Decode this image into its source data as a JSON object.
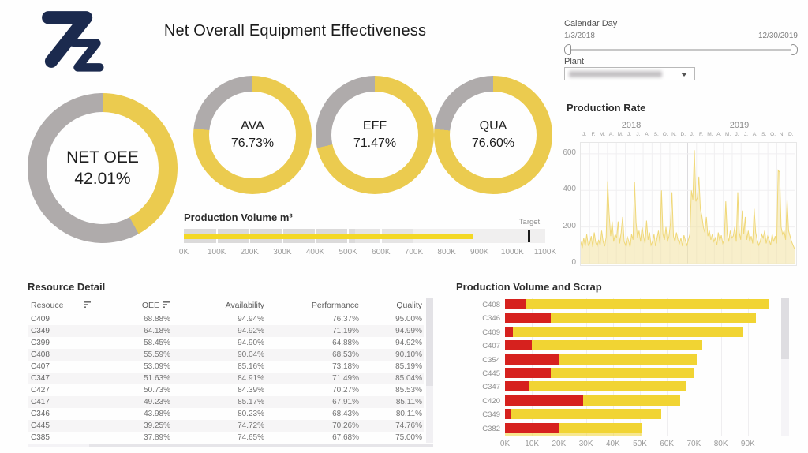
{
  "app": {
    "title": "Net Overall Equipment Effectiveness"
  },
  "filters": {
    "calendar": {
      "label": "Calendar Day",
      "start": "1/3/2018",
      "end": "12/30/2019"
    },
    "plant": {
      "label": "Plant"
    }
  },
  "kpis": [
    {
      "label": "NET OEE",
      "value": "42.01%",
      "pct": 42.01
    },
    {
      "label": "AVA",
      "value": "76.73%",
      "pct": 76.73
    },
    {
      "label": "EFF",
      "value": "71.47%",
      "pct": 71.47
    },
    {
      "label": "QUA",
      "value": "76.60%",
      "pct": 76.6
    }
  ],
  "colors": {
    "brand_navy": "#1b2a4e",
    "donut_yellow": "#ebcb4f",
    "donut_gray": "#afabab",
    "bullet_yellow": "#f3d825",
    "bullet_bands": [
      "#dbdada",
      "#e5e4e4",
      "#f0efef"
    ],
    "bar_yellow": "#f1d433",
    "bar_red": "#d6211e",
    "rate_stroke": "#f0d878",
    "rate_fill": "rgba(243,226,160,0.55)"
  },
  "resource_detail": {
    "title": "Resource Detail",
    "columns": [
      "Resouce",
      "OEE",
      "Availability",
      "Performance",
      "Quality"
    ],
    "sorted_columns": [
      0,
      1
    ],
    "rows": [
      [
        "C409",
        "68.88%",
        "94.94%",
        "76.37%",
        "95.00%"
      ],
      [
        "C349",
        "64.18%",
        "94.92%",
        "71.19%",
        "94.99%"
      ],
      [
        "C399",
        "58.45%",
        "94.90%",
        "64.88%",
        "94.92%"
      ],
      [
        "C408",
        "55.59%",
        "90.04%",
        "68.53%",
        "90.10%"
      ],
      [
        "C407",
        "53.09%",
        "85.16%",
        "73.18%",
        "85.19%"
      ],
      [
        "C347",
        "51.63%",
        "84.91%",
        "71.49%",
        "85.04%"
      ],
      [
        "C427",
        "50.73%",
        "84.39%",
        "70.27%",
        "85.53%"
      ],
      [
        "C417",
        "49.23%",
        "85.17%",
        "67.91%",
        "85.11%"
      ],
      [
        "C346",
        "43.98%",
        "80.23%",
        "68.43%",
        "80.11%"
      ],
      [
        "C445",
        "39.25%",
        "74.72%",
        "70.26%",
        "74.76%"
      ],
      [
        "C385",
        "37.89%",
        "74.65%",
        "67.68%",
        "75.00%"
      ]
    ]
  },
  "chart_data": [
    {
      "id": "production_volume_bullet",
      "type": "bar",
      "subtype": "bullet",
      "title": "Production Volume m³",
      "target_label": "Target",
      "value_k": 880,
      "target_k": 1050,
      "axis_max_k": 1100,
      "band_edges_k": [
        520,
        700,
        1100
      ],
      "ticks": [
        "0K",
        "100K",
        "200K",
        "300K",
        "400K",
        "500K",
        "600K",
        "700K",
        "800K",
        "900K",
        "1000K",
        "1100K"
      ]
    },
    {
      "id": "production_rate",
      "type": "area",
      "title": "Production Rate",
      "years": [
        "2018",
        "2019"
      ],
      "month_labels": [
        "J.",
        "F.",
        "M.",
        "A.",
        "M.",
        "J.",
        "J.",
        "A.",
        "S.",
        "O.",
        "N.",
        "D.",
        "J.",
        "F.",
        "M.",
        "A.",
        "M.",
        "J.",
        "J.",
        "A.",
        "S.",
        "O.",
        "N.",
        "D."
      ],
      "yticks": [
        0,
        200,
        400,
        600
      ],
      "ylim": [
        0,
        660
      ],
      "grid": true,
      "values": [
        120,
        85,
        140,
        95,
        160,
        100,
        110,
        150,
        90,
        170,
        115,
        95,
        130,
        100,
        180,
        120,
        95,
        145,
        450,
        270,
        150,
        230,
        120,
        160,
        140,
        230,
        110,
        170,
        255,
        120,
        100,
        150,
        125,
        90,
        160,
        130,
        445,
        225,
        140,
        180,
        120,
        200,
        150,
        110,
        235,
        130,
        170,
        100,
        120,
        160,
        95,
        140,
        180,
        110,
        400,
        160,
        130,
        200,
        120,
        150,
        220,
        390,
        150,
        120,
        170,
        130,
        110,
        140,
        95,
        155,
        125,
        100,
        130,
        160,
        400,
        350,
        620,
        340,
        360,
        475,
        300,
        260,
        200,
        170,
        255,
        150,
        180,
        130,
        160,
        120,
        140,
        100,
        170,
        125,
        155,
        110,
        130,
        340,
        160,
        120,
        180,
        140,
        150,
        200,
        120,
        390,
        170,
        130,
        290,
        160,
        255,
        130,
        180,
        120,
        150,
        110,
        300,
        170,
        130,
        100,
        120,
        160,
        140,
        180,
        110,
        150,
        130,
        100,
        160,
        120,
        150,
        110,
        510,
        500,
        200,
        160,
        180,
        130,
        350,
        180,
        150,
        120,
        100,
        80
      ]
    },
    {
      "id": "production_volume_and_scrap",
      "type": "bar",
      "subtype": "stacked-horizontal",
      "title": "Production Volume and Scrap",
      "categories": [
        "C408",
        "C346",
        "C409",
        "C407",
        "C354",
        "C445",
        "C347",
        "C420",
        "C349",
        "C382"
      ],
      "series": [
        {
          "name": "Scrap",
          "color_key": "bar_red",
          "values": [
            8,
            17,
            3,
            10,
            20,
            17,
            9,
            29,
            2,
            20
          ]
        },
        {
          "name": "Production Volume",
          "color_key": "bar_yellow",
          "values": [
            90,
            76,
            85,
            63,
            51,
            53,
            58,
            36,
            56,
            31
          ]
        }
      ],
      "totals_k": [
        98,
        93,
        88,
        73,
        71,
        70,
        67,
        65,
        58,
        51
      ],
      "xticks": [
        "0K",
        "10K",
        "20K",
        "30K",
        "40K",
        "50K",
        "60K",
        "70K",
        "80K",
        "90K"
      ],
      "unit": "K",
      "partial_row_total_k": 51
    }
  ]
}
